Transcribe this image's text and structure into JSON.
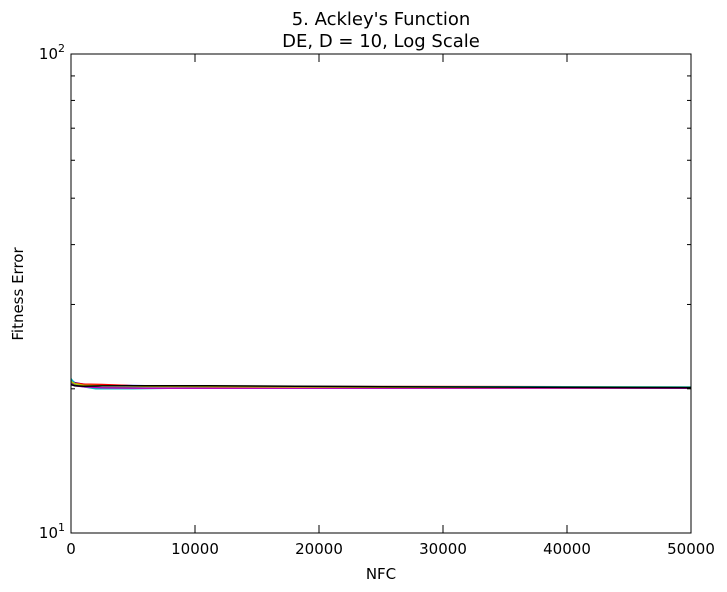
{
  "chart_data": {
    "type": "line",
    "title_line1": "5.   Ackley's Function",
    "title_line2": "DE, D = 10, Log Scale",
    "xlabel": "NFC",
    "ylabel": "Fitness Error",
    "xlim": [
      0,
      50000
    ],
    "ylim": [
      10,
      100
    ],
    "yscale": "log",
    "xticks": [
      "0",
      "10000",
      "20000",
      "30000",
      "40000",
      "50000"
    ],
    "xtick_values": [
      0,
      10000,
      20000,
      30000,
      40000,
      50000
    ],
    "yticks": [
      {
        "base": "10",
        "exp": "1",
        "value": 10
      },
      {
        "base": "10",
        "exp": "2",
        "value": 100
      }
    ],
    "grid": false,
    "series": [
      {
        "color": "#0000ff",
        "x": [
          0,
          300,
          1000,
          2500,
          6000,
          12000,
          25000,
          50000
        ],
        "y": [
          20.9,
          20.6,
          20.45,
          20.35,
          20.3,
          20.25,
          20.2,
          20.18
        ]
      },
      {
        "color": "#008000",
        "x": [
          0,
          300,
          1000,
          2500,
          6000,
          12000,
          25000,
          50000
        ],
        "y": [
          20.6,
          20.4,
          20.2,
          20.1,
          20.08,
          20.07,
          20.05,
          20.05
        ]
      },
      {
        "color": "#ff0000",
        "x": [
          0,
          300,
          1000,
          2500,
          5000,
          12000,
          25000,
          40000,
          50000
        ],
        "y": [
          20.8,
          20.55,
          20.45,
          20.42,
          20.3,
          20.25,
          20.22,
          20.2,
          20.15
        ]
      },
      {
        "color": "#00bfbf",
        "x": [
          0,
          300,
          1000,
          2000,
          5000,
          17000,
          30000,
          50000
        ],
        "y": [
          21.0,
          20.5,
          20.2,
          20.0,
          20.0,
          20.22,
          20.2,
          20.18
        ]
      },
      {
        "color": "#bf00bf",
        "x": [
          0,
          300,
          1000,
          2500,
          6000,
          12000,
          25000,
          50000
        ],
        "y": [
          20.5,
          20.3,
          20.2,
          20.1,
          20.05,
          20.05,
          20.05,
          20.05
        ]
      },
      {
        "color": "#bfbf00",
        "x": [
          0,
          300,
          1000,
          2500,
          6000,
          12000,
          25000,
          50000
        ],
        "y": [
          20.7,
          20.5,
          20.35,
          20.3,
          20.25,
          20.2,
          20.15,
          20.12
        ]
      },
      {
        "color": "#000000",
        "x": [
          0,
          300,
          1000,
          2500,
          5000,
          11000,
          25000,
          50000
        ],
        "y": [
          20.4,
          20.3,
          20.25,
          20.28,
          20.3,
          20.3,
          20.2,
          20.1
        ]
      }
    ]
  }
}
